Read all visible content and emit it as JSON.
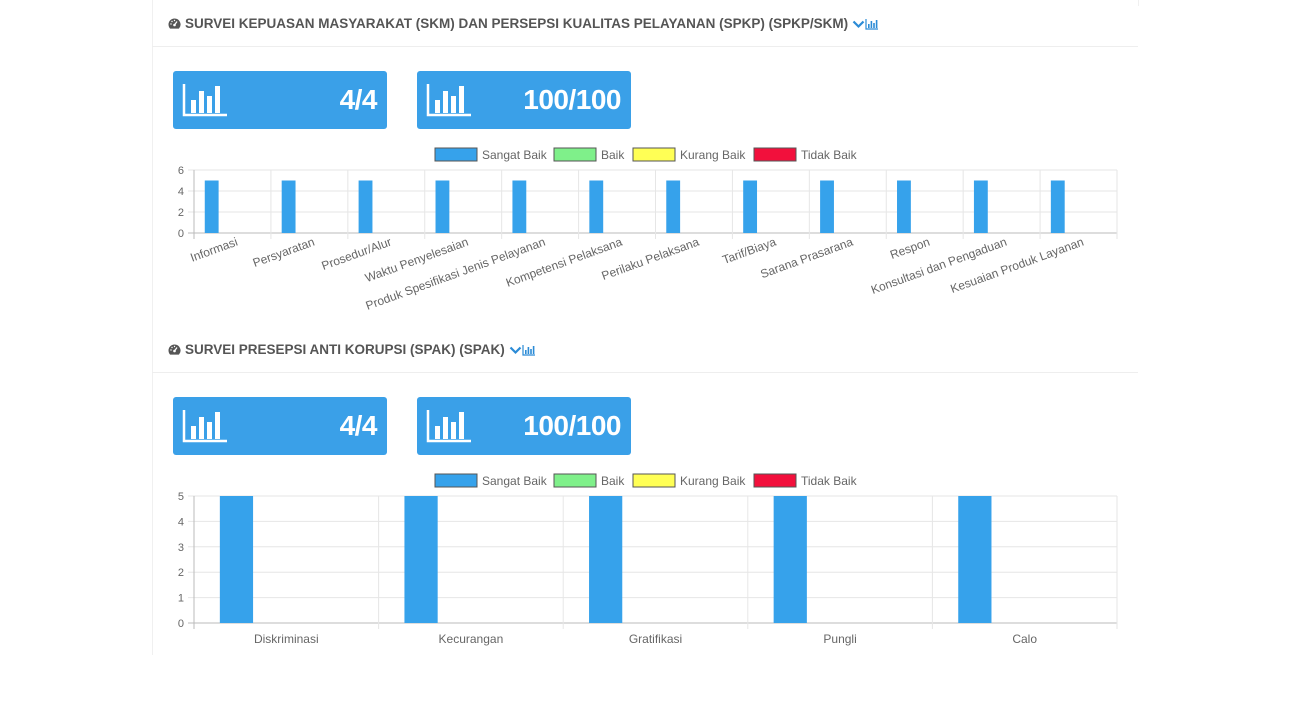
{
  "sections": [
    {
      "title": "SURVEI KEPUASAN MASYARAKAT (SKM) DAN PERSEPSI KUALITAS PELAYANAN (SPKP) (SPKP/SKM)",
      "cards": [
        {
          "value": "4/4"
        },
        {
          "value": "100/100"
        }
      ]
    },
    {
      "title": "SURVEI PRESEPSI ANTI KORUPSI (SPAK) (SPAK)",
      "cards": [
        {
          "value": "4/4"
        },
        {
          "value": "100/100"
        }
      ]
    }
  ],
  "colors": {
    "accent": "#3aa0e8",
    "sangat_baik": "#36a2eb",
    "baik": "#7ff08a",
    "kurang_baik": "#ffff55",
    "tidak_baik": "#f2103c"
  },
  "icons": {
    "section": "dashboard-gauge-icon",
    "toggle": "chevron-down-icon",
    "chart_toggle": "bar-chart-icon",
    "card": "bar-chart-icon"
  },
  "chart_data": [
    {
      "type": "bar",
      "categories": [
        "Informasi",
        "Persyaratan",
        "Prosedur/Alur",
        "Waktu Penyelesaian",
        "Produk Spesifikasi Jenis Pelayanan",
        "Kompetensi Pelaksana",
        "Perilaku Pelaksana",
        "Tarif/Biaya",
        "Sarana Prasarana",
        "Respon",
        "Konsultasi dan Pengaduan",
        "Kesuaian Produk Layanan"
      ],
      "series": [
        {
          "name": "Sangat Baik",
          "values": [
            5,
            5,
            5,
            5,
            5,
            5,
            5,
            5,
            5,
            5,
            5,
            5
          ]
        },
        {
          "name": "Baik",
          "values": [
            0,
            0,
            0,
            0,
            0,
            0,
            0,
            0,
            0,
            0,
            0,
            0
          ]
        },
        {
          "name": "Kurang Baik",
          "values": [
            0,
            0,
            0,
            0,
            0,
            0,
            0,
            0,
            0,
            0,
            0,
            0
          ]
        },
        {
          "name": "Tidak Baik",
          "values": [
            0,
            0,
            0,
            0,
            0,
            0,
            0,
            0,
            0,
            0,
            0,
            0
          ]
        }
      ],
      "ylim": [
        0,
        6
      ],
      "yticks": [
        0,
        2,
        4,
        6
      ],
      "legend": "top",
      "grid": true
    },
    {
      "type": "bar",
      "categories": [
        "Diskriminasi",
        "Kecurangan",
        "Gratifikasi",
        "Pungli",
        "Calo"
      ],
      "series": [
        {
          "name": "Sangat Baik",
          "values": [
            5,
            5,
            5,
            5,
            5
          ]
        },
        {
          "name": "Baik",
          "values": [
            0,
            0,
            0,
            0,
            0
          ]
        },
        {
          "name": "Kurang Baik",
          "values": [
            0,
            0,
            0,
            0,
            0
          ]
        },
        {
          "name": "Tidak Baik",
          "values": [
            0,
            0,
            0,
            0,
            0
          ]
        }
      ],
      "ylim": [
        0,
        5
      ],
      "yticks": [
        0,
        1,
        2,
        3,
        4,
        5
      ],
      "legend": "top",
      "grid": true
    }
  ]
}
